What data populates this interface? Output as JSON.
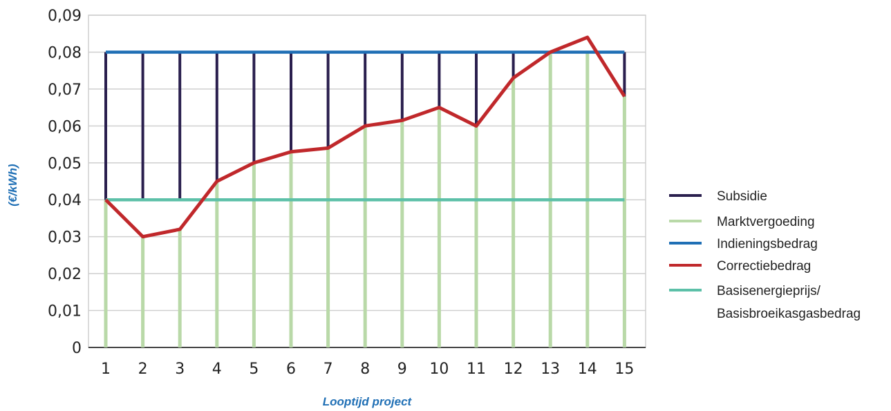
{
  "chart_data": {
    "type": "line",
    "xlabel": "Looptijd project",
    "ylabel": "(€/kWh)",
    "x": [
      1,
      2,
      3,
      4,
      5,
      6,
      7,
      8,
      9,
      10,
      11,
      12,
      13,
      14,
      15
    ],
    "ylim": [
      0,
      0.09
    ],
    "yticks": [
      0,
      0.01,
      0.02,
      0.03,
      0.04,
      0.05,
      0.06,
      0.07,
      0.08,
      0.09
    ],
    "ytick_labels": [
      "0",
      "0,01",
      "0,02",
      "0,03",
      "0,04",
      "0,05",
      "0,06",
      "0,07",
      "0,08",
      "0,09"
    ],
    "grid": true,
    "legend_position": "right",
    "series": [
      {
        "name": "Subsidie",
        "color": "#2a1f4e",
        "kind": "bars-between",
        "from": "Correctiebedrag",
        "to": "Indieningsbedrag"
      },
      {
        "name": "Marktvergoeding",
        "color": "#b9d9a8",
        "kind": "bars-below",
        "to": "Correctiebedrag"
      },
      {
        "name": "Indieningsbedrag",
        "color": "#1f6fb5",
        "kind": "line",
        "values": [
          0.08,
          0.08,
          0.08,
          0.08,
          0.08,
          0.08,
          0.08,
          0.08,
          0.08,
          0.08,
          0.08,
          0.08,
          0.08,
          0.08,
          0.08
        ]
      },
      {
        "name": "Correctiebedrag",
        "color": "#c0282b",
        "kind": "line",
        "values": [
          0.04,
          0.03,
          0.032,
          0.045,
          0.05,
          0.053,
          0.054,
          0.06,
          0.0615,
          0.065,
          0.06,
          0.073,
          0.08,
          0.084,
          0.068
        ]
      },
      {
        "name": "Basisenergieprijs/",
        "name_line2": "Basisbroeikasgasbedrag",
        "color": "#5cc0a8",
        "kind": "line",
        "values": [
          0.04,
          0.04,
          0.04,
          0.04,
          0.04,
          0.04,
          0.04,
          0.04,
          0.04,
          0.04,
          0.04,
          0.04,
          0.04,
          0.04,
          0.04
        ]
      }
    ]
  }
}
